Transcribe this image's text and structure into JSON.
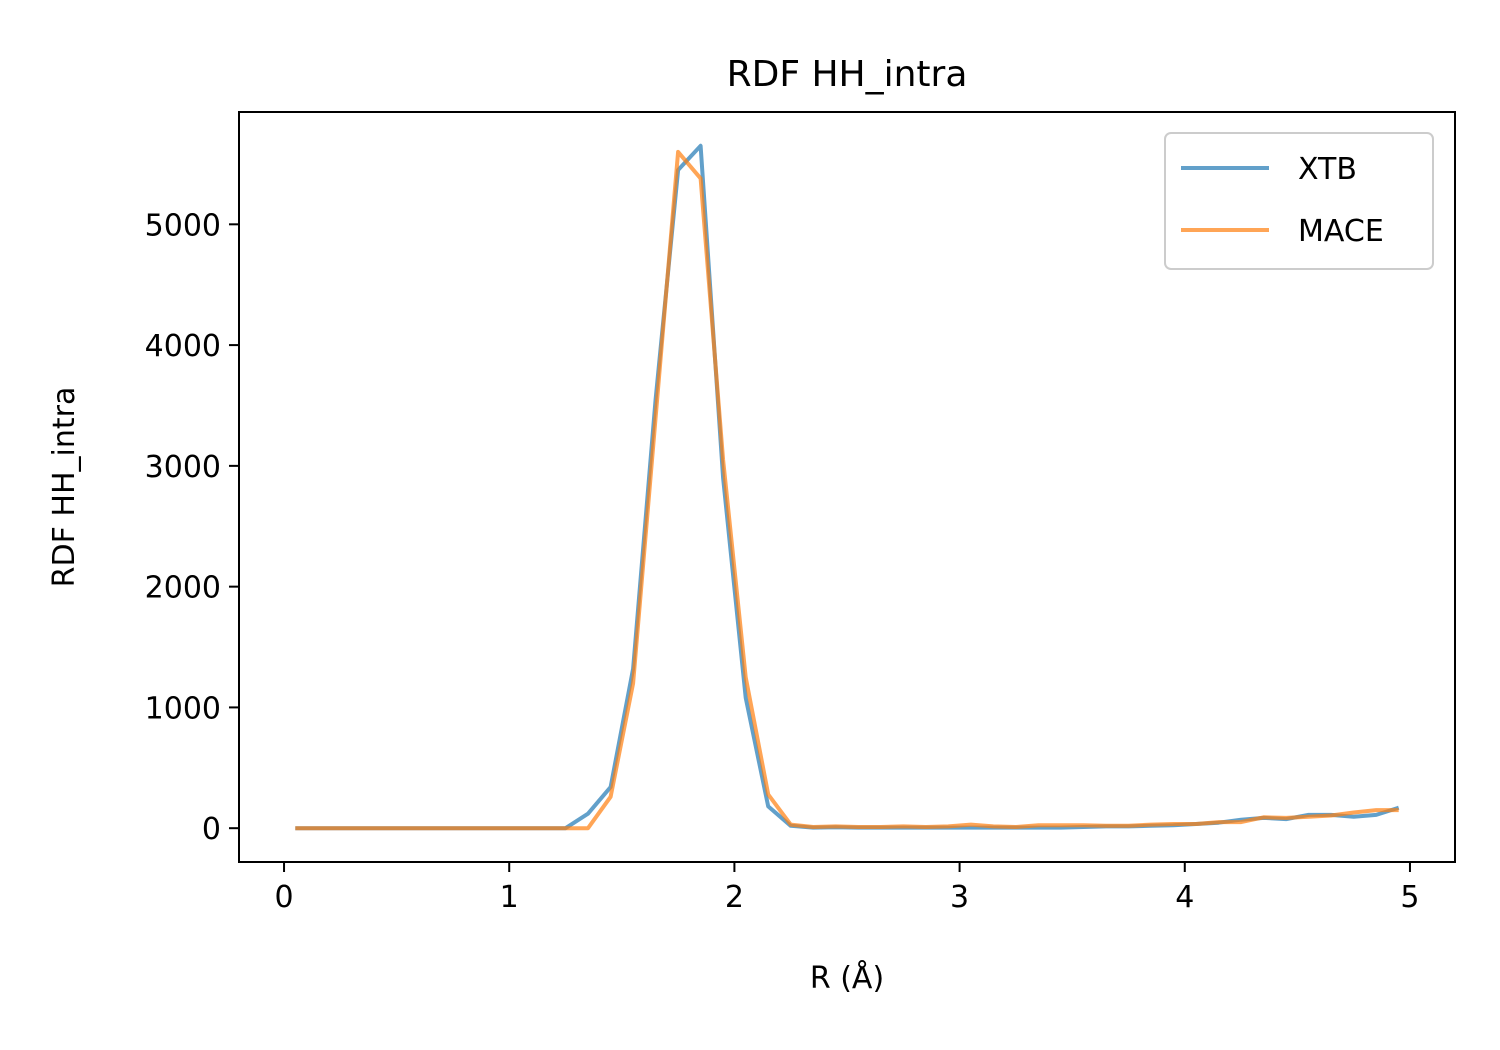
{
  "chart_data": {
    "type": "line",
    "title": "RDF HH_intra",
    "xlabel": "R (Å)",
    "ylabel": "RDF HH_intra",
    "xlim": [
      -0.2,
      5.2
    ],
    "ylim": [
      -280,
      5930
    ],
    "xticks": [
      0,
      1,
      2,
      3,
      4,
      5
    ],
    "yticks": [
      0,
      1000,
      2000,
      3000,
      4000,
      5000
    ],
    "legend_position": "top-right",
    "grid": false,
    "x": [
      0.05,
      0.15,
      0.25,
      0.35,
      0.45,
      0.55,
      0.65,
      0.75,
      0.85,
      0.95,
      1.05,
      1.15,
      1.25,
      1.35,
      1.45,
      1.55,
      1.65,
      1.75,
      1.85,
      1.95,
      2.05,
      2.15,
      2.25,
      2.35,
      2.45,
      2.55,
      2.65,
      2.75,
      2.85,
      2.95,
      3.05,
      3.15,
      3.25,
      3.35,
      3.45,
      3.55,
      3.65,
      3.75,
      3.85,
      3.95,
      4.05,
      4.15,
      4.25,
      4.35,
      4.45,
      4.55,
      4.65,
      4.75,
      4.85,
      4.95
    ],
    "series": [
      {
        "name": "XTB",
        "color": "#1f77b4",
        "values": [
          0,
          0,
          0,
          0,
          0,
          0,
          0,
          0,
          0,
          0,
          0,
          0,
          0,
          120,
          340,
          1320,
          3550,
          5450,
          5650,
          2900,
          1080,
          180,
          20,
          5,
          8,
          5,
          5,
          5,
          5,
          5,
          5,
          5,
          5,
          5,
          5,
          10,
          15,
          15,
          20,
          25,
          35,
          45,
          70,
          85,
          75,
          110,
          110,
          95,
          110,
          170
        ]
      },
      {
        "name": "MACE",
        "color": "#ff7f0e",
        "values": [
          0,
          0,
          0,
          0,
          0,
          0,
          0,
          0,
          0,
          0,
          0,
          0,
          0,
          0,
          260,
          1200,
          3400,
          5600,
          5380,
          3050,
          1250,
          280,
          30,
          10,
          15,
          10,
          10,
          15,
          10,
          15,
          30,
          15,
          10,
          25,
          25,
          25,
          20,
          20,
          30,
          35,
          35,
          50,
          50,
          90,
          85,
          95,
          105,
          130,
          150,
          150
        ]
      }
    ]
  }
}
